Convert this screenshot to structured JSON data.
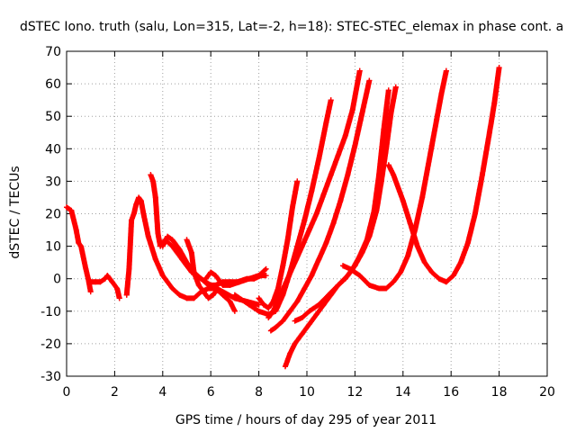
{
  "chart_data": {
    "type": "scatter",
    "title": "dSTEC Iono. truth (salu, Lon=315, Lat=-2, h=18): STEC-STEC_elemax in phase cont. a",
    "xlabel": "GPS time / hours of day 295 of year 2011",
    "ylabel": "dSTEC  / TECUs",
    "xlim": [
      0,
      20
    ],
    "ylim": [
      -30,
      70
    ],
    "xticks": [
      0,
      2,
      4,
      6,
      8,
      10,
      12,
      14,
      16,
      18,
      20
    ],
    "yticks": [
      -30,
      -20,
      -10,
      0,
      10,
      20,
      30,
      40,
      50,
      60,
      70
    ],
    "grid": true,
    "marker": "plus",
    "color": "#ff0000",
    "series": [
      {
        "x": [
          0.0,
          0.2,
          0.4,
          0.5,
          0.6,
          0.8,
          0.9,
          1.0
        ],
        "y": [
          22,
          21,
          15,
          11,
          10,
          3,
          0,
          -4
        ]
      },
      {
        "x": [
          1.0,
          1.2,
          1.4,
          1.6,
          1.7,
          1.9,
          2.1,
          2.2
        ],
        "y": [
          -1,
          -1,
          -1,
          0,
          1,
          -1,
          -3,
          -6
        ]
      },
      {
        "x": [
          2.5,
          2.6,
          2.7,
          2.8,
          2.9,
          3.0,
          3.1,
          3.2,
          3.4,
          3.7,
          4.0,
          4.4,
          4.7,
          5.0,
          5.3,
          5.6,
          5.9,
          6.2,
          6.5,
          6.8,
          7.0
        ],
        "y": [
          -5,
          3,
          18,
          20,
          23,
          25,
          24,
          20,
          13,
          6,
          1,
          -3,
          -5,
          -6,
          -6,
          -4,
          -3,
          -3,
          -5,
          -7,
          -10
        ]
      },
      {
        "x": [
          3.5,
          3.6,
          3.7,
          3.8,
          3.9,
          4.0,
          4.1,
          4.4,
          4.8,
          5.2,
          5.6,
          6.0,
          6.5,
          7.0,
          7.5,
          8.0
        ],
        "y": [
          32,
          30,
          25,
          14,
          10,
          11,
          12,
          10,
          6,
          2,
          0,
          -2,
          -4,
          -6,
          -7,
          -8
        ]
      },
      {
        "x": [
          4.0,
          4.2,
          4.4,
          4.7,
          5.0,
          5.3,
          5.6,
          5.9,
          6.2,
          6.5,
          6.8,
          7.1,
          7.5,
          7.8,
          8.1,
          8.3
        ],
        "y": [
          10,
          13,
          12,
          9,
          5,
          2,
          0,
          -2,
          -2,
          -1,
          -1,
          -1,
          0,
          0,
          1,
          1
        ]
      },
      {
        "x": [
          5.0,
          5.1,
          5.2,
          5.3,
          5.5,
          5.7,
          5.9,
          6.1,
          6.3
        ],
        "y": [
          12,
          10,
          8,
          2,
          -2,
          -4,
          -6,
          -5,
          -3
        ]
      },
      {
        "x": [
          5.8,
          6.0,
          6.2,
          6.5,
          6.8,
          7.2,
          7.6,
          8.0,
          8.3
        ],
        "y": [
          0,
          2,
          1,
          -2,
          -2,
          -1,
          0,
          1,
          3
        ]
      },
      {
        "x": [
          8.0,
          8.2,
          8.4,
          8.6,
          8.8,
          9.0,
          9.2,
          9.4,
          9.6
        ],
        "y": [
          -6,
          -8,
          -9,
          -7,
          -3,
          4,
          12,
          22,
          30
        ]
      },
      {
        "x": [
          7.0,
          7.6,
          8.0,
          8.4,
          8.7,
          9.0,
          9.3,
          9.6,
          9.9,
          10.2,
          10.5,
          10.8,
          11.0
        ],
        "y": [
          -5,
          -8,
          -10,
          -11,
          -10,
          -5,
          2,
          10,
          18,
          27,
          37,
          48,
          55
        ]
      },
      {
        "x": [
          8.4,
          8.6,
          8.9,
          9.2,
          9.5,
          9.8,
          10.1,
          10.4,
          10.7,
          11.0,
          11.3,
          11.6,
          11.9,
          12.1,
          12.2
        ],
        "y": [
          -12,
          -10,
          -5,
          0,
          5,
          10,
          15,
          20,
          26,
          32,
          38,
          44,
          52,
          60,
          64
        ]
      },
      {
        "x": [
          8.5,
          8.7,
          9.0,
          9.3,
          9.6,
          9.9,
          10.2,
          10.5,
          10.8,
          11.1,
          11.4,
          11.7,
          12.0,
          12.3,
          12.6
        ],
        "y": [
          -16,
          -15,
          -13,
          -10,
          -7,
          -3,
          1,
          6,
          11,
          17,
          24,
          32,
          41,
          51,
          61
        ]
      },
      {
        "x": [
          9.1,
          9.3,
          9.5,
          9.8,
          10.1,
          10.4,
          10.7,
          11.0,
          11.3,
          11.6,
          11.9,
          12.2,
          12.5,
          12.8,
          13.0,
          13.2,
          13.4
        ],
        "y": [
          -27,
          -23,
          -20,
          -17,
          -14,
          -11,
          -8,
          -5,
          -2,
          0,
          3,
          7,
          12,
          21,
          32,
          46,
          58
        ]
      },
      {
        "x": [
          9.5,
          9.8,
          10.1,
          10.5,
          10.9,
          11.3,
          11.7,
          12.0,
          12.3,
          12.6,
          12.9,
          13.1,
          13.3,
          13.5,
          13.7
        ],
        "y": [
          -13,
          -12,
          -10,
          -8,
          -5,
          -2,
          1,
          4,
          8,
          13,
          21,
          30,
          40,
          51,
          59
        ]
      },
      {
        "x": [
          11.5,
          11.8,
          12.2,
          12.6,
          13.0,
          13.3,
          13.6,
          13.9,
          14.2,
          14.5,
          14.8,
          15.0,
          15.2,
          15.4,
          15.6,
          15.8
        ],
        "y": [
          4,
          3,
          1,
          -2,
          -3,
          -3,
          -1,
          2,
          7,
          15,
          25,
          33,
          41,
          49,
          57,
          64
        ]
      },
      {
        "x": [
          13.4,
          13.6,
          13.8,
          14.0,
          14.3,
          14.6,
          14.9,
          15.2,
          15.5,
          15.8,
          16.1,
          16.4,
          16.7,
          17.0,
          17.3,
          17.6,
          17.8,
          18.0
        ],
        "y": [
          35,
          32,
          28,
          24,
          17,
          10,
          5,
          2,
          0,
          -1,
          1,
          5,
          11,
          20,
          32,
          45,
          54,
          65
        ]
      }
    ]
  }
}
